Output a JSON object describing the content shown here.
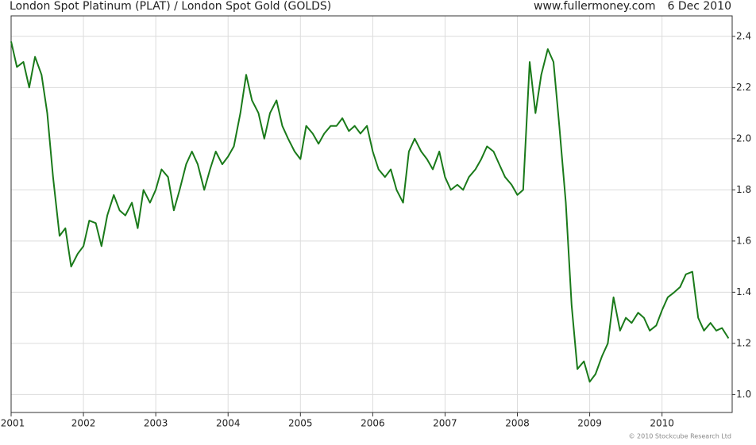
{
  "chart_data": {
    "type": "line",
    "title": "London Spot Platinum (PLAT) / London Spot Gold (GOLDS)",
    "source": "www.fullermoney.com",
    "date": "6 Dec 2010",
    "copyright": "© 2010 Stockcube Research Ltd",
    "x": [
      2001,
      2001.08,
      2001.17,
      2001.25,
      2001.33,
      2001.42,
      2001.5,
      2001.58,
      2001.67,
      2001.75,
      2001.83,
      2001.92,
      2002,
      2002.08,
      2002.17,
      2002.25,
      2002.33,
      2002.42,
      2002.5,
      2002.58,
      2002.67,
      2002.75,
      2002.83,
      2002.92,
      2003,
      2003.08,
      2003.17,
      2003.25,
      2003.33,
      2003.42,
      2003.5,
      2003.58,
      2003.67,
      2003.75,
      2003.83,
      2003.92,
      2004,
      2004.08,
      2004.17,
      2004.25,
      2004.33,
      2004.42,
      2004.5,
      2004.58,
      2004.67,
      2004.75,
      2004.83,
      2004.92,
      2005,
      2005.08,
      2005.17,
      2005.25,
      2005.33,
      2005.42,
      2005.5,
      2005.58,
      2005.67,
      2005.75,
      2005.83,
      2005.92,
      2006,
      2006.08,
      2006.17,
      2006.25,
      2006.33,
      2006.42,
      2006.5,
      2006.58,
      2006.67,
      2006.75,
      2006.83,
      2006.92,
      2007,
      2007.08,
      2007.17,
      2007.25,
      2007.33,
      2007.42,
      2007.5,
      2007.58,
      2007.67,
      2007.75,
      2007.83,
      2007.92,
      2008,
      2008.08,
      2008.17,
      2008.25,
      2008.33,
      2008.42,
      2008.5,
      2008.58,
      2008.67,
      2008.75,
      2008.83,
      2008.92,
      2009,
      2009.08,
      2009.17,
      2009.25,
      2009.33,
      2009.42,
      2009.5,
      2009.58,
      2009.67,
      2009.75,
      2009.83,
      2009.92,
      2010,
      2010.08,
      2010.17,
      2010.25,
      2010.33,
      2010.42,
      2010.5,
      2010.58,
      2010.67,
      2010.75,
      2010.83,
      2010.92
    ],
    "series": [
      {
        "name": "PLAT / GOLDS",
        "color": "#1a7a1a",
        "values": [
          2.38,
          2.28,
          2.3,
          2.2,
          2.32,
          2.25,
          2.1,
          1.85,
          1.62,
          1.65,
          1.5,
          1.55,
          1.58,
          1.68,
          1.67,
          1.58,
          1.7,
          1.78,
          1.72,
          1.7,
          1.75,
          1.65,
          1.8,
          1.75,
          1.8,
          1.88,
          1.85,
          1.72,
          1.8,
          1.9,
          1.95,
          1.9,
          1.8,
          1.88,
          1.95,
          1.9,
          1.93,
          1.97,
          2.1,
          2.25,
          2.15,
          2.1,
          2.0,
          2.1,
          2.15,
          2.05,
          2.0,
          1.95,
          1.92,
          2.05,
          2.02,
          1.98,
          2.02,
          2.05,
          2.05,
          2.08,
          2.03,
          2.05,
          2.02,
          2.05,
          1.95,
          1.88,
          1.85,
          1.88,
          1.8,
          1.75,
          1.95,
          2.0,
          1.95,
          1.92,
          1.88,
          1.95,
          1.85,
          1.8,
          1.82,
          1.8,
          1.85,
          1.88,
          1.92,
          1.97,
          1.95,
          1.9,
          1.85,
          1.82,
          1.78,
          1.8,
          2.3,
          2.1,
          2.25,
          2.35,
          2.3,
          2.05,
          1.75,
          1.35,
          1.1,
          1.13,
          1.05,
          1.08,
          1.15,
          1.2,
          1.38,
          1.25,
          1.3,
          1.28,
          1.32,
          1.3,
          1.25,
          1.27,
          1.33,
          1.38,
          1.4,
          1.42,
          1.47,
          1.48,
          1.3,
          1.25,
          1.28,
          1.25,
          1.26,
          1.22
        ]
      }
    ],
    "xlim": [
      2001,
      2010.97
    ],
    "xticks": [
      2001,
      2002,
      2003,
      2004,
      2005,
      2006,
      2007,
      2008,
      2009,
      2010
    ],
    "ylim": [
      0.93,
      2.48
    ],
    "yticks": [
      {
        "value": 1,
        "label": "1.0"
      },
      1.2,
      1.4,
      1.6,
      1.8,
      {
        "value": 2,
        "label": "2.0"
      },
      2.2,
      2.4
    ],
    "grid": true
  }
}
